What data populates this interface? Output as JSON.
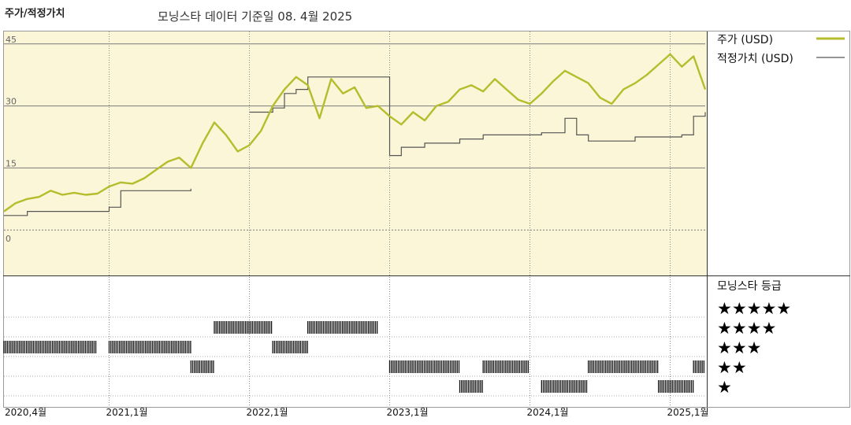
{
  "header": {
    "title": "주가/적정가치",
    "subtitle": "모닝스타 데이터 기준일 08. 4월 2025"
  },
  "legend": {
    "price": "주가 (USD)",
    "fair_value": "적정가치 (USD)",
    "rating_title": "모닝스타 등급"
  },
  "colors": {
    "price": "#b5bd2c",
    "fair_value": "#555555",
    "plot_bg": "#faf6d7",
    "grid": "#7a7a7a"
  },
  "chart_data": {
    "type": "line",
    "x_axis": {
      "start": "2020-04",
      "end": "2025-04",
      "ticks": [
        "2020,4월",
        "2021,1월",
        "2022,1월",
        "2023,1월",
        "2024,1월",
        "2025,1월"
      ]
    },
    "y_axis": {
      "ylim": [
        -11,
        48
      ],
      "ticks": [
        0,
        15,
        30,
        45
      ]
    },
    "series": [
      {
        "name": "주가 (USD)",
        "points": [
          [
            "2020-04",
            4.5
          ],
          [
            "2020-05",
            6.5
          ],
          [
            "2020-06",
            7.5
          ],
          [
            "2020-07",
            8.0
          ],
          [
            "2020-08",
            9.5
          ],
          [
            "2020-09",
            8.5
          ],
          [
            "2020-10",
            9.0
          ],
          [
            "2020-11",
            8.5
          ],
          [
            "2020-12",
            8.8
          ],
          [
            "2021-01",
            10.5
          ],
          [
            "2021-02",
            11.5
          ],
          [
            "2021-03",
            11.2
          ],
          [
            "2021-04",
            12.5
          ],
          [
            "2021-05",
            14.5
          ],
          [
            "2021-06",
            16.5
          ],
          [
            "2021-07",
            17.5
          ],
          [
            "2021-08",
            15.0
          ],
          [
            "2021-09",
            21.0
          ],
          [
            "2021-10",
            26.0
          ],
          [
            "2021-11",
            23.0
          ],
          [
            "2021-12",
            19.0
          ],
          [
            "2022-01",
            20.5
          ],
          [
            "2022-02",
            24.0
          ],
          [
            "2022-03",
            30.0
          ],
          [
            "2022-04",
            34.0
          ],
          [
            "2022-05",
            37.0
          ],
          [
            "2022-06",
            35.0
          ],
          [
            "2022-07",
            27.0
          ],
          [
            "2022-08",
            36.5
          ],
          [
            "2022-09",
            33.0
          ],
          [
            "2022-10",
            34.5
          ],
          [
            "2022-11",
            29.5
          ],
          [
            "2022-12",
            30.0
          ],
          [
            "2023-01",
            27.5
          ],
          [
            "2023-02",
            25.5
          ],
          [
            "2023-03",
            28.5
          ],
          [
            "2023-04",
            26.5
          ],
          [
            "2023-05",
            30.0
          ],
          [
            "2023-06",
            31.0
          ],
          [
            "2023-07",
            34.0
          ],
          [
            "2023-08",
            35.0
          ],
          [
            "2023-09",
            33.5
          ],
          [
            "2023-10",
            36.5
          ],
          [
            "2023-11",
            34.0
          ],
          [
            "2023-12",
            31.5
          ],
          [
            "2024-01",
            30.5
          ],
          [
            "2024-02",
            33.0
          ],
          [
            "2024-03",
            36.0
          ],
          [
            "2024-04",
            38.5
          ],
          [
            "2024-05",
            37.0
          ],
          [
            "2024-06",
            35.5
          ],
          [
            "2024-07",
            32.0
          ],
          [
            "2024-08",
            30.5
          ],
          [
            "2024-09",
            34.0
          ],
          [
            "2024-10",
            35.5
          ],
          [
            "2024-11",
            37.5
          ],
          [
            "2024-12",
            40.0
          ],
          [
            "2025-01",
            42.5
          ],
          [
            "2025-02",
            39.5
          ],
          [
            "2025-03",
            42.0
          ],
          [
            "2025-04",
            34.0
          ]
        ]
      },
      {
        "name": "적정가치 (USD)",
        "points": [
          [
            "2020-04",
            3.5
          ],
          [
            "2020-06",
            4.5
          ],
          [
            "2021-01",
            5.5
          ],
          [
            "2021-02",
            9.5
          ],
          [
            "2021-08",
            10.0
          ],
          [
            "2022-01",
            28.5
          ],
          [
            "2022-03",
            29.5
          ],
          [
            "2022-04",
            33.0
          ],
          [
            "2022-05",
            34.0
          ],
          [
            "2022-06",
            37.0
          ],
          [
            "2022-12",
            37.0
          ],
          [
            "2023-01",
            18.0
          ],
          [
            "2023-02",
            20.0
          ],
          [
            "2023-04",
            21.0
          ],
          [
            "2023-07",
            22.0
          ],
          [
            "2023-09",
            23.0
          ],
          [
            "2023-10",
            23.0
          ],
          [
            "2024-01",
            23.0
          ],
          [
            "2024-02",
            23.5
          ],
          [
            "2024-04",
            27.0
          ],
          [
            "2024-05",
            23.0
          ],
          [
            "2024-06",
            21.5
          ],
          [
            "2024-08",
            21.5
          ],
          [
            "2024-10",
            22.5
          ],
          [
            "2024-12",
            22.5
          ],
          [
            "2025-01",
            22.5
          ],
          [
            "2025-02",
            23.0
          ],
          [
            "2025-03",
            27.5
          ],
          [
            "2025-04",
            28.5
          ]
        ]
      }
    ],
    "fair_value_gap": [
      "2021-08",
      "2022-01"
    ],
    "rating_rows": [
      "★★★★★",
      "★★★★",
      "★★★",
      "★★",
      "★"
    ],
    "ratings_timeline": [
      {
        "from": "2020-04",
        "to": "2020-12",
        "stars": 3
      },
      {
        "from": "2021-01",
        "to": "2021-08",
        "stars": 3
      },
      {
        "from": "2021-08",
        "to": "2021-10",
        "stars": 2
      },
      {
        "from": "2021-10",
        "to": "2022-03",
        "stars": 4
      },
      {
        "from": "2022-03",
        "to": "2022-06",
        "stars": 3
      },
      {
        "from": "2022-06",
        "to": "2022-12",
        "stars": 4
      },
      {
        "from": "2023-01",
        "to": "2023-07",
        "stars": 2
      },
      {
        "from": "2023-07",
        "to": "2023-09",
        "stars": 1
      },
      {
        "from": "2023-09",
        "to": "2024-01",
        "stars": 2
      },
      {
        "from": "2024-02",
        "to": "2024-06",
        "stars": 1
      },
      {
        "from": "2024-06",
        "to": "2024-12",
        "stars": 2
      },
      {
        "from": "2024-12",
        "to": "2025-03",
        "stars": 1
      },
      {
        "from": "2025-03",
        "to": "2025-04",
        "stars": 2
      }
    ]
  }
}
